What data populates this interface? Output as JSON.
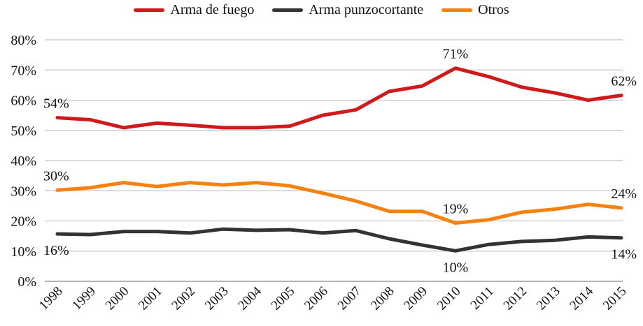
{
  "chart_data": {
    "type": "line",
    "title": "",
    "xlabel": "",
    "ylabel": "",
    "ylim": [
      0,
      80
    ],
    "y_ticks": [
      0,
      10,
      20,
      30,
      40,
      50,
      60,
      70,
      80
    ],
    "y_tick_labels": [
      "0%",
      "10%",
      "20%",
      "30%",
      "40%",
      "50%",
      "60%",
      "70%",
      "80%"
    ],
    "categories": [
      "1998",
      "1999",
      "2000",
      "2001",
      "2002",
      "2003",
      "2004",
      "2005",
      "2006",
      "2007",
      "2008",
      "2009",
      "2010",
      "2011",
      "2012",
      "2013",
      "2014",
      "2015"
    ],
    "legend_position": "top-center",
    "grid": true,
    "series": [
      {
        "name": "Arma de fuego",
        "color": "#d0191b",
        "values": [
          54.2,
          53.5,
          50.9,
          52.4,
          51.7,
          50.9,
          50.9,
          51.4,
          55.0,
          56.8,
          62.9,
          64.7,
          70.6,
          67.8,
          64.3,
          62.4,
          60.0,
          61.6
        ]
      },
      {
        "name": "Arma punzocortante",
        "color": "#333333",
        "values": [
          15.7,
          15.5,
          16.5,
          16.5,
          16.0,
          17.3,
          16.9,
          17.1,
          16.0,
          16.8,
          14.1,
          12.0,
          10.1,
          12.2,
          13.2,
          13.6,
          14.7,
          14.4
        ]
      },
      {
        "name": "Otros",
        "color": "#f5820f",
        "values": [
          30.2,
          31.0,
          32.7,
          31.4,
          32.7,
          31.9,
          32.7,
          31.6,
          29.2,
          26.6,
          23.2,
          23.2,
          19.3,
          20.4,
          22.9,
          23.9,
          25.5,
          24.3
        ]
      }
    ],
    "annotations": [
      {
        "series": 0,
        "index": 0,
        "text": "54%",
        "pos": "above"
      },
      {
        "series": 0,
        "index": 12,
        "text": "71%",
        "pos": "above"
      },
      {
        "series": 0,
        "index": 17,
        "text": "62%",
        "pos": "above"
      },
      {
        "series": 2,
        "index": 0,
        "text": "30%",
        "pos": "above"
      },
      {
        "series": 2,
        "index": 12,
        "text": "19%",
        "pos": "above"
      },
      {
        "series": 2,
        "index": 17,
        "text": "24%",
        "pos": "above"
      },
      {
        "series": 1,
        "index": 0,
        "text": "16%",
        "pos": "below"
      },
      {
        "series": 1,
        "index": 12,
        "text": "10%",
        "pos": "below"
      },
      {
        "series": 1,
        "index": 17,
        "text": "14%",
        "pos": "below"
      }
    ]
  }
}
